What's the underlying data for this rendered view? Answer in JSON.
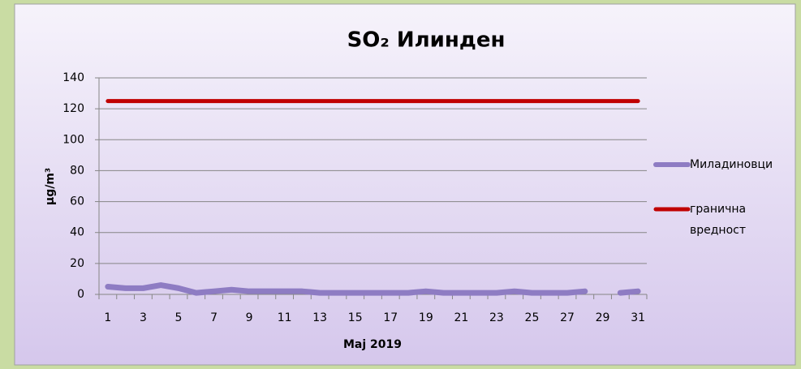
{
  "chart_data": {
    "type": "line",
    "title": "SO₂ Илинден",
    "ylabel": "μg/m³",
    "xlabel": "Maj 2019",
    "categories": [
      1,
      null,
      3,
      null,
      5,
      null,
      7,
      null,
      9,
      null,
      11,
      null,
      13,
      null,
      15,
      null,
      17,
      null,
      19,
      null,
      21,
      null,
      23,
      null,
      25,
      null,
      27,
      null,
      29,
      null,
      31
    ],
    "series": [
      {
        "name": "Миладиновци",
        "color": "#8e7cc3",
        "values": [
          5,
          4,
          4,
          6,
          4,
          1,
          2,
          3,
          2,
          2,
          2,
          2,
          1,
          1,
          1,
          1,
          1,
          1,
          2,
          1,
          1,
          1,
          1,
          2,
          1,
          1,
          1,
          2,
          null,
          1,
          2
        ]
      },
      {
        "name": "гранична вредност",
        "color": "#c00000",
        "values": [
          125,
          125,
          125,
          125,
          125,
          125,
          125,
          125,
          125,
          125,
          125,
          125,
          125,
          125,
          125,
          125,
          125,
          125,
          125,
          125,
          125,
          125,
          125,
          125,
          125,
          125,
          125,
          125,
          125,
          125,
          125
        ]
      }
    ],
    "ylim": [
      0,
      140
    ],
    "yticks": [
      0,
      20,
      40,
      60,
      80,
      100,
      120,
      140
    ],
    "grid": true,
    "legend": "right"
  }
}
